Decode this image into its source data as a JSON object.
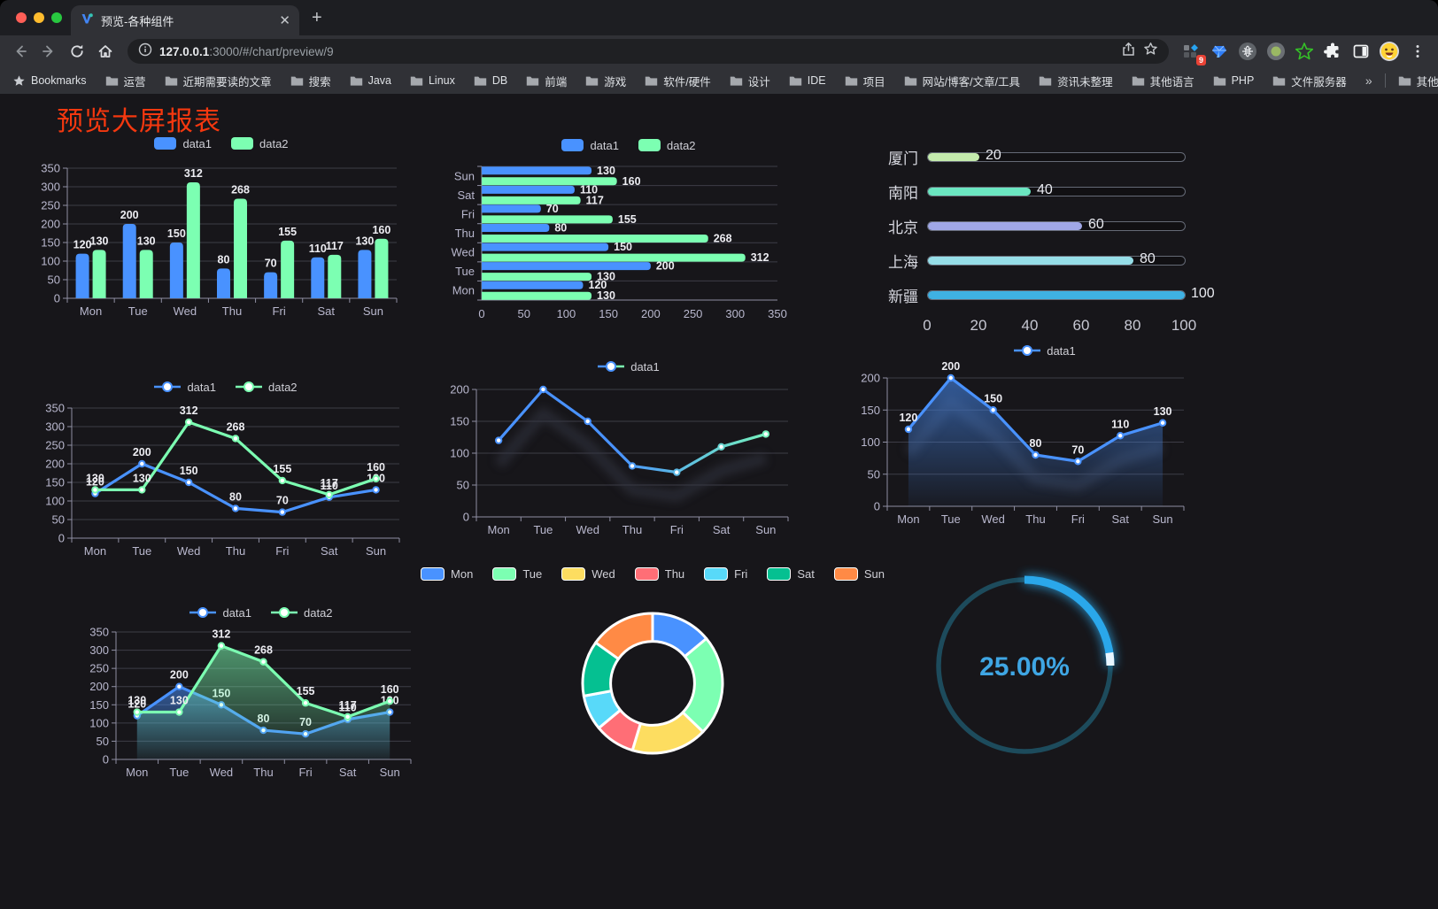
{
  "browser": {
    "tab_title": "预览-各种组件",
    "url_host": "127.0.0.1",
    "url_rest": ":3000/#/chart/preview/9",
    "bookmarks_label": "Bookmarks",
    "bookmarks": [
      "运营",
      "近期需要读的文章",
      "搜索",
      "Java",
      "Linux",
      "DB",
      "前端",
      "游戏",
      "软件/硬件",
      "设计",
      "IDE",
      "项目",
      "网站/博客/文章/工具",
      "资讯未整理",
      "其他语言",
      "PHP",
      "文件服务器"
    ],
    "overflow_chevron": "»",
    "other_bookmarks": "其他书签",
    "extension_badge": "9"
  },
  "page": {
    "title": "预览大屏报表",
    "title_color": "#f5380f",
    "background": "#17161a"
  },
  "chart_data": [
    {
      "id": "bar-vertical",
      "type": "bar",
      "categories": [
        "Mon",
        "Tue",
        "Wed",
        "Thu",
        "Fri",
        "Sat",
        "Sun"
      ],
      "series": [
        {
          "name": "data1",
          "color": "#4992ff",
          "values": [
            120,
            200,
            150,
            80,
            70,
            110,
            130
          ]
        },
        {
          "name": "data2",
          "color": "#7cffb2",
          "values": [
            130,
            130,
            312,
            268,
            155,
            117,
            160
          ]
        }
      ],
      "ylim": [
        0,
        350
      ],
      "ystep": 50,
      "labels": true,
      "legend_position": "top"
    },
    {
      "id": "bar-horizontal",
      "type": "bar-horizontal",
      "categories": [
        "Mon",
        "Tue",
        "Wed",
        "Thu",
        "Fri",
        "Sat",
        "Sun"
      ],
      "display_order_top_to_bottom": [
        "Sun",
        "Sat",
        "Fri",
        "Thu",
        "Wed",
        "Tue",
        "Mon"
      ],
      "series": [
        {
          "name": "data1",
          "color": "#4992ff",
          "values": [
            120,
            200,
            150,
            80,
            70,
            110,
            130
          ]
        },
        {
          "name": "data2",
          "color": "#7cffb2",
          "values": [
            130,
            130,
            312,
            268,
            155,
            117,
            160
          ]
        }
      ],
      "xlim": [
        0,
        350
      ],
      "xstep": 50,
      "labels": true,
      "legend_position": "top"
    },
    {
      "id": "progress-bars",
      "type": "bar",
      "rows": [
        {
          "label": "厦门",
          "value": 20,
          "color": "#c4ebad"
        },
        {
          "label": "南阳",
          "value": 40,
          "color": "#6be6c1"
        },
        {
          "label": "北京",
          "value": 60,
          "color": "#a0a7e6"
        },
        {
          "label": "上海",
          "value": 80,
          "color": "#96dee8"
        },
        {
          "label": "新疆",
          "value": 100,
          "color": "#3fb1e3"
        }
      ],
      "xlim": [
        0,
        100
      ],
      "xticks": [
        0,
        20,
        40,
        60,
        80,
        100
      ]
    },
    {
      "id": "line-two-series",
      "type": "line",
      "categories": [
        "Mon",
        "Tue",
        "Wed",
        "Thu",
        "Fri",
        "Sat",
        "Sun"
      ],
      "series": [
        {
          "name": "data1",
          "color": "#4992ff",
          "values": [
            120,
            200,
            150,
            80,
            70,
            110,
            130
          ]
        },
        {
          "name": "data2",
          "color": "#7cffb2",
          "values": [
            130,
            130,
            312,
            268,
            155,
            117,
            160
          ]
        }
      ],
      "ylim": [
        0,
        350
      ],
      "ystep": 50,
      "labels": true
    },
    {
      "id": "line-gradient",
      "type": "line",
      "categories": [
        "Mon",
        "Tue",
        "Wed",
        "Thu",
        "Fri",
        "Sat",
        "Sun"
      ],
      "series": [
        {
          "name": "data1",
          "gradient": [
            "#4992ff",
            "#7cffb2"
          ],
          "values": [
            120,
            200,
            150,
            80,
            70,
            110,
            130
          ],
          "shadow": true
        }
      ],
      "ylim": [
        0,
        200
      ],
      "ystep": 50,
      "labels": false
    },
    {
      "id": "line-area",
      "type": "area",
      "categories": [
        "Mon",
        "Tue",
        "Wed",
        "Thu",
        "Fri",
        "Sat",
        "Sun"
      ],
      "series": [
        {
          "name": "data1",
          "color": "#4992ff",
          "values": [
            120,
            200,
            150,
            80,
            70,
            110,
            130
          ],
          "area": true,
          "shadow": true
        }
      ],
      "ylim": [
        0,
        200
      ],
      "ystep": 50,
      "labels": true
    },
    {
      "id": "line-area-two",
      "type": "area",
      "categories": [
        "Mon",
        "Tue",
        "Wed",
        "Thu",
        "Fri",
        "Sat",
        "Sun"
      ],
      "series": [
        {
          "name": "data1",
          "color": "#4992ff",
          "values": [
            120,
            200,
            150,
            80,
            70,
            110,
            130
          ],
          "area": true
        },
        {
          "name": "data2",
          "color": "#7cffb2",
          "values": [
            130,
            130,
            312,
            268,
            155,
            117,
            160
          ],
          "area": true
        }
      ],
      "ylim": [
        0,
        350
      ],
      "ystep": 50,
      "labels": true
    },
    {
      "id": "donut",
      "type": "pie",
      "labels": [
        "Mon",
        "Tue",
        "Wed",
        "Thu",
        "Fri",
        "Sat",
        "Sun"
      ],
      "values": [
        120,
        200,
        150,
        80,
        70,
        110,
        130
      ],
      "colors": [
        "#4992ff",
        "#7cffb2",
        "#fddd60",
        "#ff6e76",
        "#58d9f9",
        "#05c091",
        "#ff8a45"
      ],
      "inner_radius_ratio": 0.6,
      "border_color": "#ffffff"
    },
    {
      "id": "gauge",
      "type": "gauge",
      "value": 25,
      "max": 100,
      "text": "25.00%",
      "color": "#2aa7ea",
      "track_color": "#1d4b5c",
      "text_color": "#3fa6e4"
    }
  ]
}
